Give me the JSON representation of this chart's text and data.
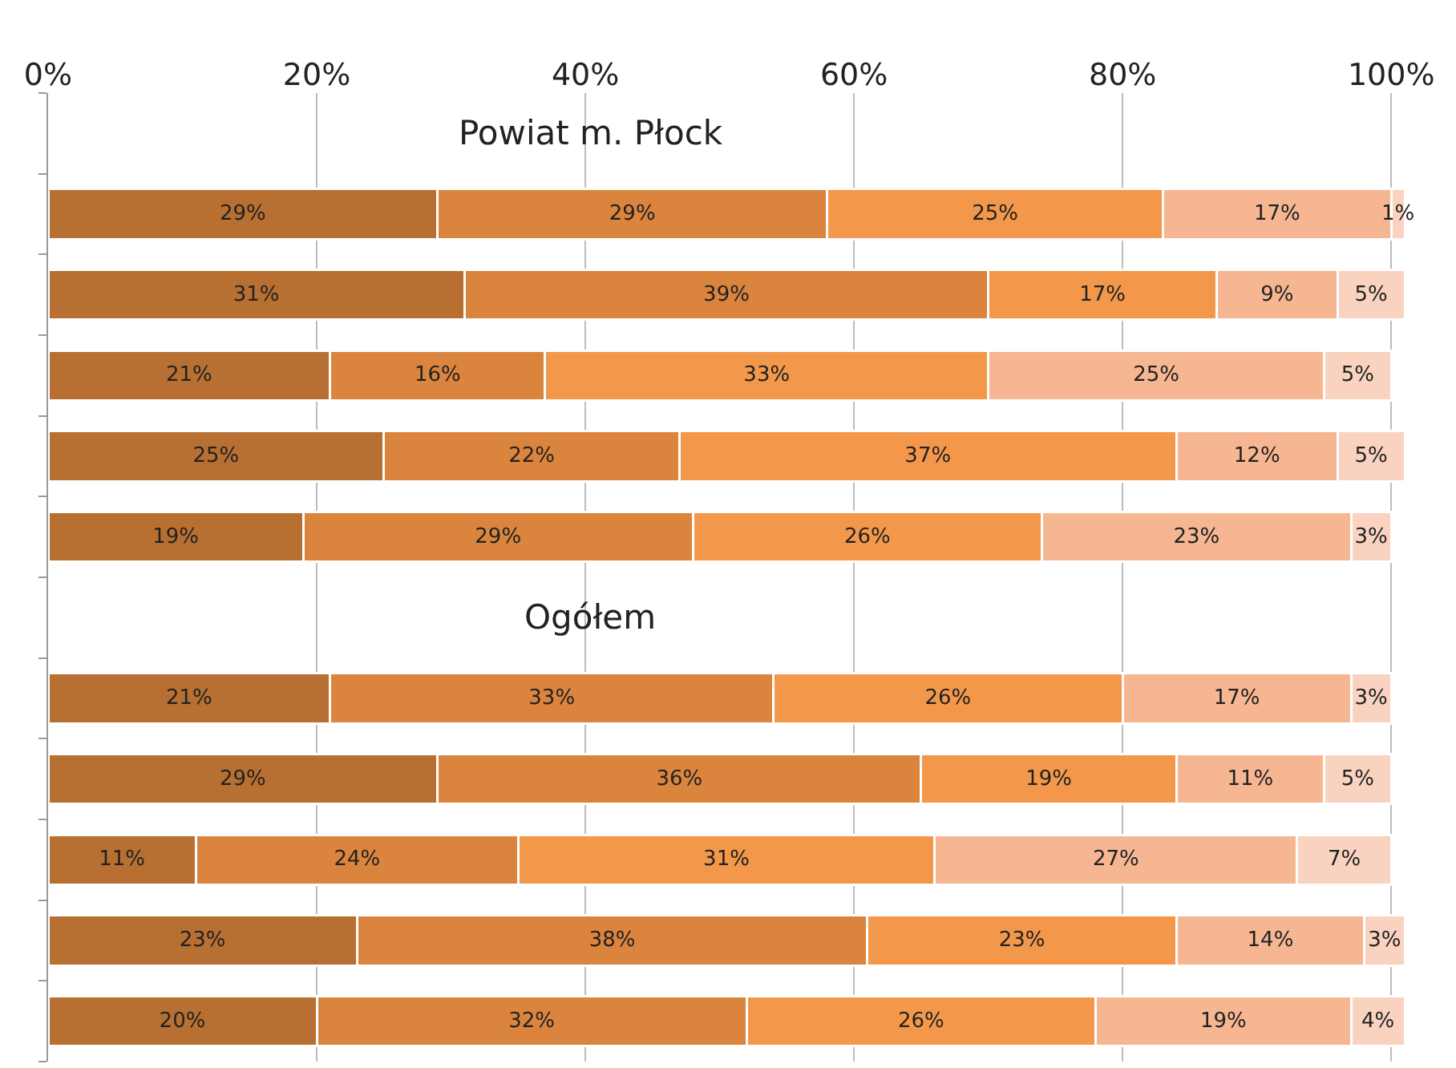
{
  "chart_data": {
    "type": "bar",
    "orientation": "horizontal",
    "stacked": true,
    "categories": [
      null,
      null,
      null,
      null,
      null,
      null,
      null,
      null,
      null,
      null,
      null,
      null
    ],
    "annotations": [
      "Powiat m. Płock",
      "Ogółem"
    ],
    "series": [
      {
        "color": "#b87032",
        "values": [
          null,
          29,
          31,
          21,
          25,
          19,
          null,
          21,
          29,
          11,
          23,
          20
        ],
        "value_labels": [
          null,
          "29%",
          "31%",
          "21%",
          "25%",
          "19%",
          null,
          "21%",
          "29%",
          "11%",
          "23%",
          "20%"
        ]
      },
      {
        "color": "#da843e",
        "values": [
          null,
          29,
          39,
          16,
          22,
          29,
          null,
          33,
          36,
          24,
          38,
          32
        ],
        "value_labels": [
          null,
          "29%",
          "39%",
          "16%",
          "22%",
          "29%",
          null,
          "33%",
          "36%",
          "24%",
          "38%",
          "32%"
        ]
      },
      {
        "color": "#f3984a",
        "values": [
          null,
          25,
          17,
          33,
          37,
          26,
          null,
          26,
          19,
          31,
          23,
          26
        ],
        "value_labels": [
          null,
          "25%",
          "17%",
          "33%",
          "37%",
          "26%",
          null,
          "26%",
          "19%",
          "31%",
          "23%",
          "26%"
        ]
      },
      {
        "color": "#f6b692",
        "values": [
          null,
          17,
          9,
          25,
          12,
          23,
          null,
          17,
          11,
          27,
          14,
          19
        ],
        "value_labels": [
          null,
          "17%",
          "9%",
          "25%",
          "12%",
          "23%",
          null,
          "17%",
          "11%",
          "27%",
          "14%",
          "19%"
        ]
      },
      {
        "color": "#f9d3bf",
        "values": [
          null,
          1,
          5,
          5,
          5,
          3,
          null,
          3,
          5,
          7,
          3,
          4
        ],
        "value_labels": [
          null,
          "1%",
          "5%",
          "5%",
          "5%",
          "3%",
          null,
          "3%",
          "5%",
          "7%",
          "3%",
          "4%"
        ]
      }
    ],
    "xlim": [
      0,
      101
    ],
    "xticks": [
      {
        "value": 0,
        "label": "0%"
      },
      {
        "value": 20,
        "label": "20%"
      },
      {
        "value": 40,
        "label": "40%"
      },
      {
        "value": 60,
        "label": "60%"
      },
      {
        "value": 80,
        "label": "80%"
      },
      {
        "value": 100,
        "label": "100%"
      }
    ],
    "grid": "x",
    "tick_labels": "x"
  }
}
